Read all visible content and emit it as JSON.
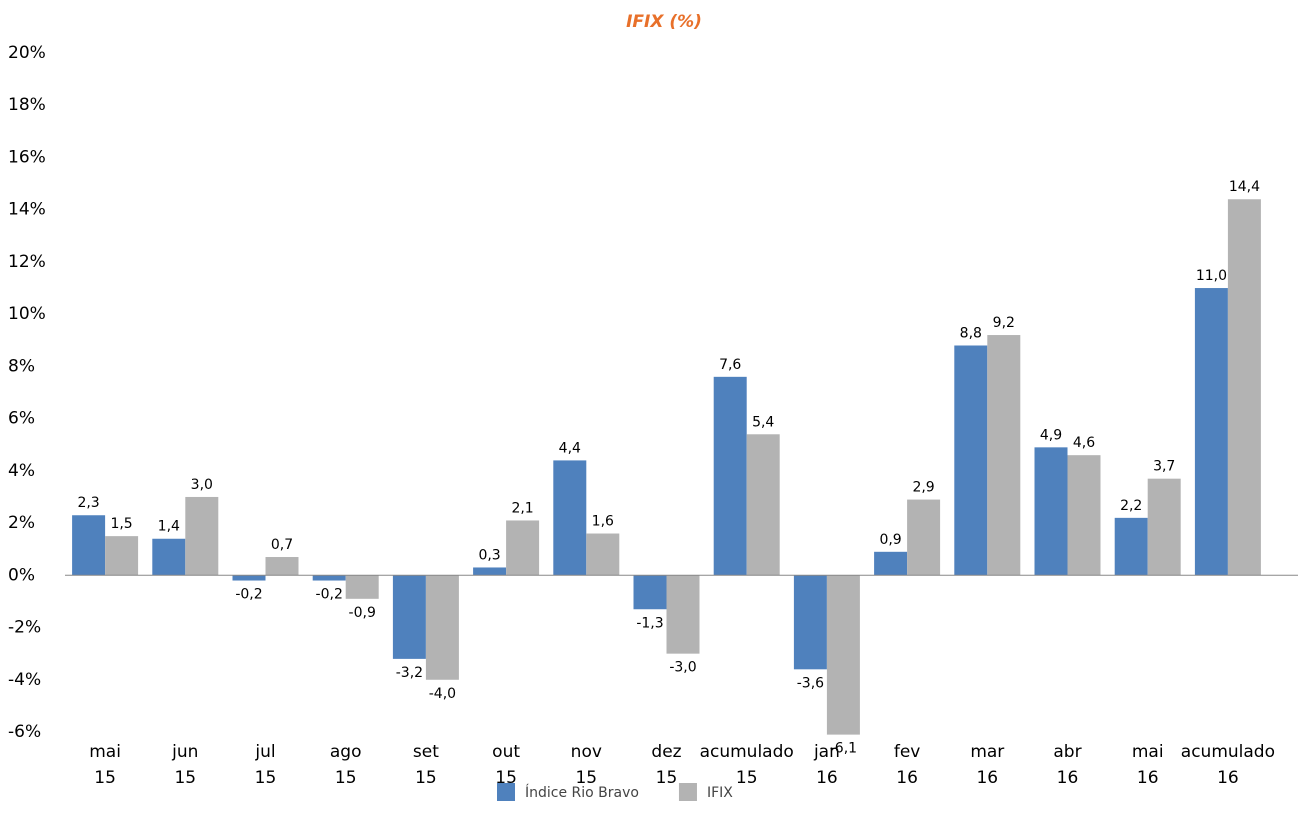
{
  "chart_data": {
    "type": "bar",
    "title": "IFIX (%)",
    "categories": [
      [
        "mai",
        "15"
      ],
      [
        "jun",
        "15"
      ],
      [
        "jul",
        "15"
      ],
      [
        "ago",
        "15"
      ],
      [
        "set",
        "15"
      ],
      [
        "out",
        "15"
      ],
      [
        "nov",
        "15"
      ],
      [
        "dez",
        "15"
      ],
      [
        "acumulado",
        "15"
      ],
      [
        "jan",
        "16"
      ],
      [
        "fev",
        "16"
      ],
      [
        "mar",
        "16"
      ],
      [
        "abr",
        "16"
      ],
      [
        "mai",
        "16"
      ],
      [
        "acumulado",
        "16"
      ]
    ],
    "series": [
      {
        "name": "Índice Rio Bravo",
        "color": "#4f81bd",
        "values": [
          2.3,
          1.4,
          -0.2,
          -0.2,
          -3.2,
          0.3,
          4.4,
          -1.3,
          7.6,
          -3.6,
          0.9,
          8.8,
          4.9,
          2.2,
          11.0
        ],
        "value_labels": [
          "2,3",
          "1,4",
          "-0,2",
          "-0,2",
          "-3,2",
          "0,3",
          "4,4",
          "-1,3",
          "7,6",
          "-3,6",
          "0,9",
          "8,8",
          "4,9",
          "2,2",
          "11,0"
        ]
      },
      {
        "name": "IFIX",
        "color": "#b3b3b3",
        "values": [
          1.5,
          3.0,
          0.7,
          -0.9,
          -4.0,
          2.1,
          1.6,
          -3.0,
          5.4,
          -6.1,
          2.9,
          9.2,
          4.6,
          3.7,
          14.4
        ],
        "value_labels": [
          "1,5",
          "3,0",
          "0,7",
          "-0,9",
          "-4,0",
          "2,1",
          "1,6",
          "-3,0",
          "5,4",
          "-6,1",
          "2,9",
          "9,2",
          "4,6",
          "3,7",
          "14,4"
        ]
      }
    ],
    "ylim": [
      -6,
      20
    ],
    "yticks": [
      {
        "value": -6,
        "label": "-6%"
      },
      {
        "value": -4,
        "label": "-4%"
      },
      {
        "value": -2,
        "label": "-2%"
      },
      {
        "value": 0,
        "label": "0%"
      },
      {
        "value": 2,
        "label": "2%"
      },
      {
        "value": 4,
        "label": "4%"
      },
      {
        "value": 6,
        "label": "6%"
      },
      {
        "value": 8,
        "label": "8%"
      },
      {
        "value": 10,
        "label": "10%"
      },
      {
        "value": 12,
        "label": "12%"
      },
      {
        "value": 14,
        "label": "14%"
      },
      {
        "value": 16,
        "label": "16%"
      },
      {
        "value": 18,
        "label": "18%"
      },
      {
        "value": 20,
        "label": "20%"
      }
    ],
    "grid": false,
    "legend": "bottom"
  }
}
